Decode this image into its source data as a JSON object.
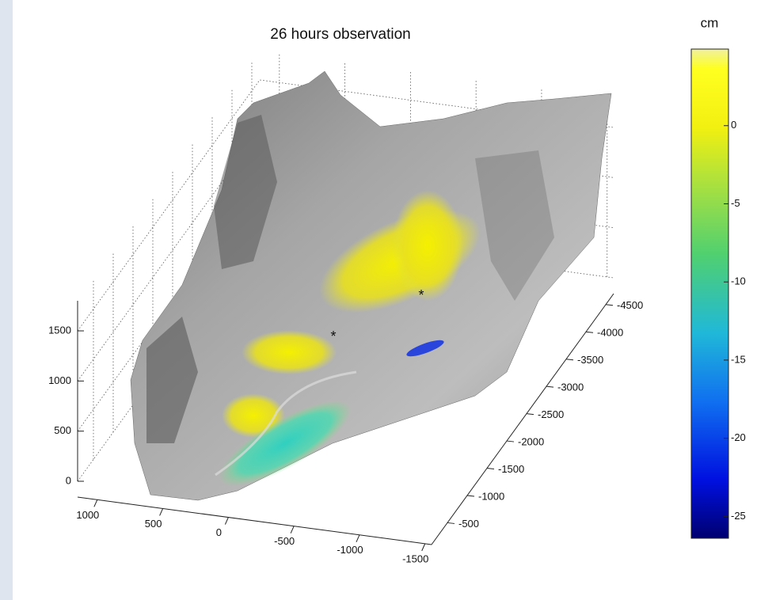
{
  "chart_data": {
    "type": "surface",
    "title": "26 hours observation",
    "xlim": [
      1150,
      -1550
    ],
    "xticks": [
      1000,
      500,
      0,
      -500,
      -1000,
      -1500
    ],
    "ylim": [
      -100,
      -4700
    ],
    "yticks": [
      -500,
      -1000,
      -1500,
      -2000,
      -2500,
      -3000,
      -3500,
      -4000,
      -4500
    ],
    "zlim": [
      0,
      1800
    ],
    "zticks": [
      0,
      500,
      1000,
      1500
    ],
    "grid": true,
    "colorbar": {
      "label": "cm",
      "clim": [
        -26.4,
        4.9
      ],
      "ticks": [
        0,
        -5,
        -10,
        -15,
        -20,
        -25
      ]
    }
  }
}
